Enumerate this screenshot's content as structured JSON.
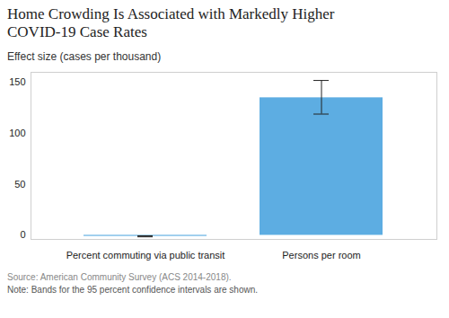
{
  "chart_data": {
    "type": "bar",
    "title": "Home Crowding Is Associated with Markedly Higher COVID-19 Case Rates",
    "subtitle": "Effect size (cases per thousand)",
    "categories": [
      "Percent commuting via public transit",
      "Persons per room"
    ],
    "values": [
      -1,
      135
    ],
    "ci_low": [
      -1.5,
      119
    ],
    "ci_high": [
      -0.5,
      152
    ],
    "color": "#5dade2",
    "ylim": [
      -4,
      160
    ],
    "yticks": [
      0,
      50,
      100,
      150
    ],
    "grid": false,
    "source": "Source: American Community Survey (ACS 2014-2018).",
    "note": "Note: Bands for the 95 percent confidence intervals are shown."
  }
}
